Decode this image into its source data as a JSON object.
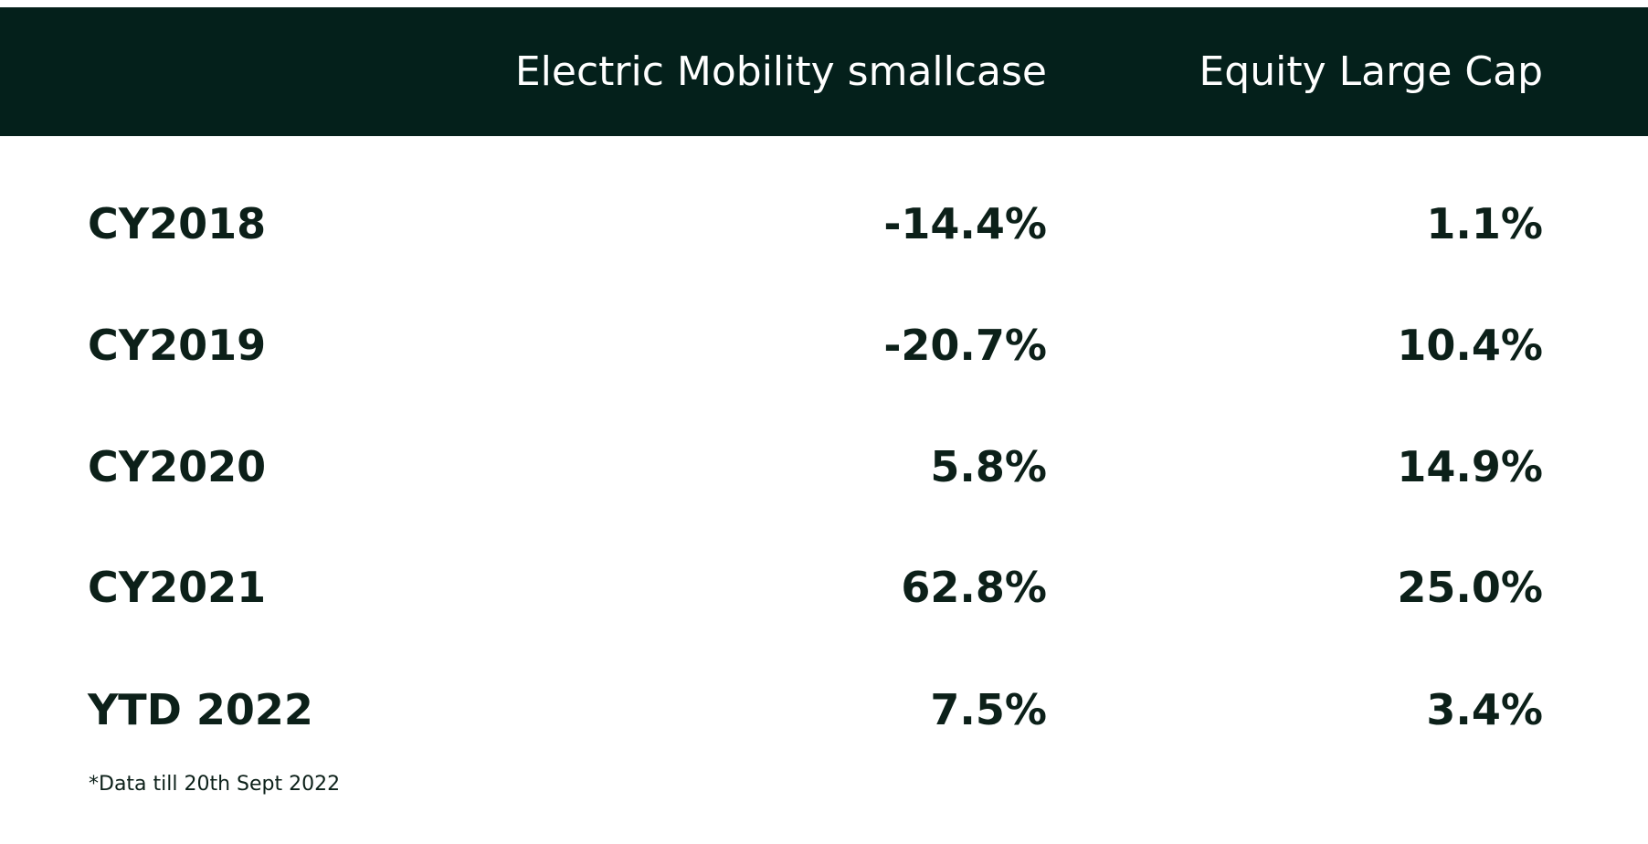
{
  "chart_data": {
    "type": "table",
    "columns": [
      "",
      "Electric Mobility smallcase",
      "Equity Large Cap"
    ],
    "rows": [
      {
        "label": "CY2018",
        "values": [
          "-14.4%",
          "1.1%"
        ]
      },
      {
        "label": "CY2019",
        "values": [
          "-20.7%",
          "10.4%"
        ]
      },
      {
        "label": "CY2020",
        "values": [
          "5.8%",
          "14.9%"
        ]
      },
      {
        "label": "CY2021",
        "values": [
          "62.8%",
          "25.0%"
        ]
      },
      {
        "label": "YTD 2022",
        "values": [
          "7.5%",
          "3.4%"
        ]
      }
    ],
    "series": [
      {
        "name": "Electric Mobility smallcase",
        "values": [
          -14.4,
          -20.7,
          5.8,
          62.8,
          7.5
        ]
      },
      {
        "name": "Equity Large Cap",
        "values": [
          1.1,
          10.4,
          14.9,
          25.0,
          3.4
        ]
      }
    ],
    "footnote": "*Data till 20th Sept 2022",
    "colors": {
      "header_bg": "#04201b",
      "header_text": "#ffffff",
      "body_text": "#0c2019",
      "background": "#ffffff"
    }
  }
}
